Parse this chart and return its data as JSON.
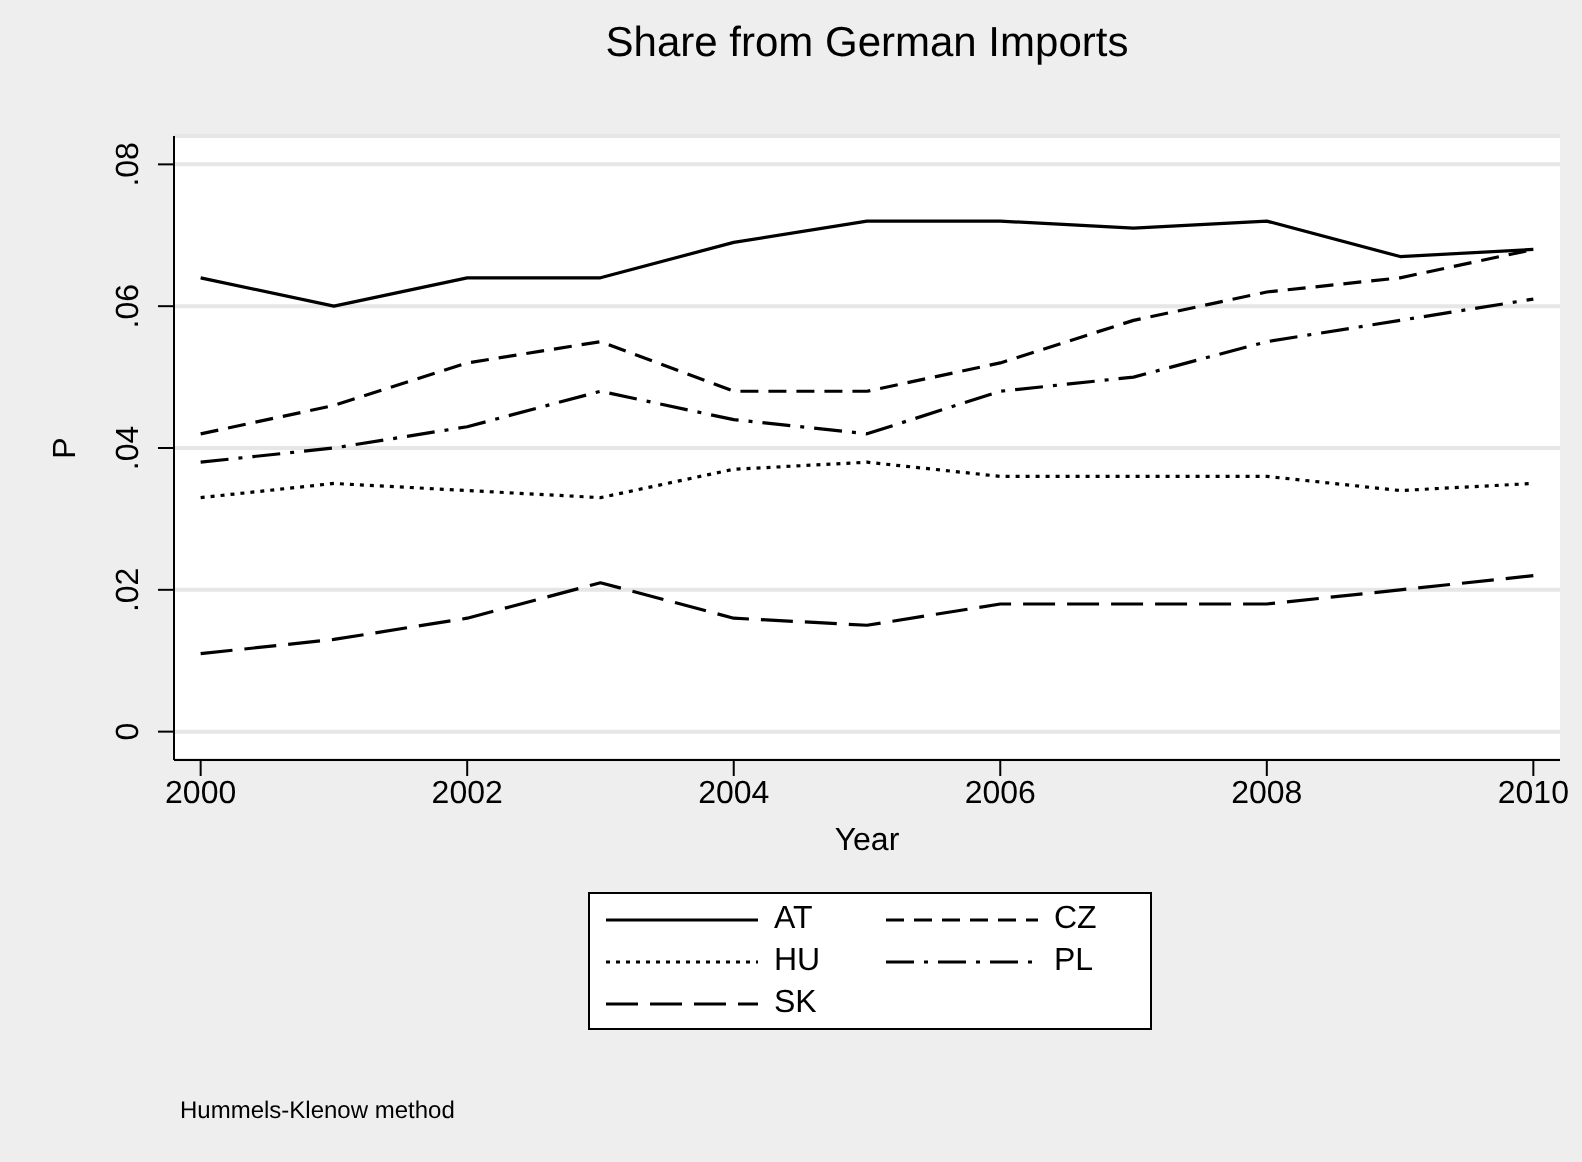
{
  "chart_data": {
    "type": "line",
    "title": "Share from German Imports",
    "xlabel": "Year",
    "ylabel": "P",
    "x": [
      2000,
      2001,
      2002,
      2003,
      2004,
      2005,
      2006,
      2007,
      2008,
      2009,
      2010
    ],
    "series": [
      {
        "name": "AT",
        "color": "#000000",
        "line_style": "solid",
        "values": [
          0.064,
          0.06,
          0.064,
          0.064,
          0.069,
          0.072,
          0.072,
          0.071,
          0.072,
          0.067,
          0.068
        ]
      },
      {
        "name": "CZ",
        "color": "#000000",
        "line_style": "dashed",
        "values": [
          0.042,
          0.046,
          0.052,
          0.055,
          0.048,
          0.048,
          0.052,
          0.058,
          0.062,
          0.064,
          0.068
        ]
      },
      {
        "name": "HU",
        "color": "#000000",
        "line_style": "dotted",
        "values": [
          0.033,
          0.035,
          0.034,
          0.033,
          0.037,
          0.038,
          0.036,
          0.036,
          0.036,
          0.034,
          0.035
        ]
      },
      {
        "name": "PL",
        "color": "#000000",
        "line_style": "dashdot",
        "values": [
          0.038,
          0.04,
          0.043,
          0.048,
          0.044,
          0.042,
          0.048,
          0.05,
          0.055,
          0.058,
          0.061
        ]
      },
      {
        "name": "SK",
        "color": "#000000",
        "line_style": "longdash",
        "values": [
          0.011,
          0.013,
          0.016,
          0.021,
          0.016,
          0.015,
          0.018,
          0.018,
          0.018,
          0.02,
          0.022
        ]
      }
    ],
    "xlim": [
      1999.8,
      2010.2
    ],
    "xticks": [
      2000,
      2002,
      2004,
      2006,
      2008,
      2010
    ],
    "ylim": [
      -0.004,
      0.084
    ],
    "yticks": [
      0,
      {
        "value": 0.02,
        "label": ".02"
      },
      {
        "value": 0.04,
        "label": ".04"
      },
      {
        "value": 0.06,
        "label": ".06"
      },
      {
        "value": 0.08,
        "label": ".08"
      }
    ],
    "grid": "y",
    "legend": "bottom",
    "marker": "none",
    "annotations": [
      "Hummels-Klenow method"
    ]
  }
}
